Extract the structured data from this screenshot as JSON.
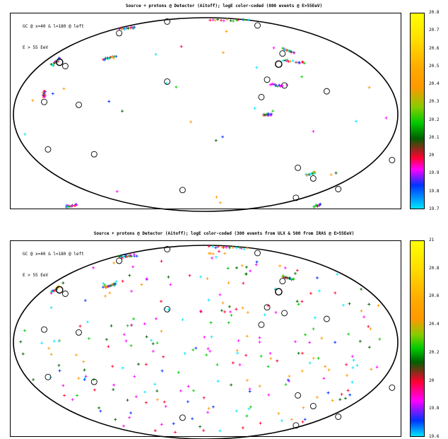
{
  "panels": [
    {
      "title": "Source + protons @ Detector (Aitoff); logE color-coded (800 events @ E>55EeV)",
      "legend": [
        "GC @ x=40 & l=180 @ left",
        "E > 55 EeV"
      ],
      "colorbar_ticks": [
        "19.7",
        "19.8",
        "19.9",
        "20",
        "20.1",
        "20.2",
        "20.3",
        "20.4",
        "20.5",
        "20.6",
        "20.7",
        "20.8"
      ],
      "colors": {
        "cyan": "#00e5ff",
        "blue": "#0033ff",
        "magenta": "#ff00ff",
        "red": "#ff0030",
        "dgreen": "#006000",
        "green": "#00cc00",
        "orange": "#ff9900",
        "yellow": "#ffff00"
      }
    },
    {
      "title": "Source + protons @ Detector (Aitoff); logE color-coded (300 events from ULX & 500 from IRAS @ E>55EeV)",
      "legend": [
        "GC @ x=40 & l=180 @ left",
        "E > 55 EeV"
      ],
      "colorbar_ticks": [
        "19.6",
        "19.8",
        "20",
        "20.2",
        "20.4",
        "20.6",
        "20.8",
        "21"
      ],
      "colors": {
        "cyan": "#00e5ff",
        "blue": "#0033ff",
        "magenta": "#ff00ff",
        "red": "#ff0030",
        "dgreen": "#006000",
        "green": "#00cc00",
        "orange": "#ff9900",
        "yellow": "#ffff00"
      }
    }
  ],
  "chart_data": [
    {
      "type": "scatter",
      "projection": "aitoff",
      "title": "Source + protons @ Detector (Aitoff); logE color-coded (800 events @ E>55EeV)",
      "color_scale": {
        "label": "logE",
        "min": 19.7,
        "max": 20.8
      },
      "sources_open_circles": [
        [
          -0.2,
          0.96
        ],
        [
          0.27,
          0.92
        ],
        [
          -0.45,
          0.84
        ],
        [
          0.4,
          0.63
        ],
        [
          0.38,
          0.52
        ],
        [
          -0.76,
          0.54
        ],
        [
          -0.73,
          0.5
        ],
        [
          -0.2,
          0.34
        ],
        [
          0.32,
          0.36
        ],
        [
          0.41,
          0.3
        ],
        [
          0.63,
          0.24
        ],
        [
          -0.84,
          0.13
        ],
        [
          -0.66,
          0.1
        ],
        [
          0.29,
          0.18
        ],
        [
          -0.58,
          -0.41
        ],
        [
          -0.12,
          -0.78
        ],
        [
          0.48,
          -0.55
        ],
        [
          0.56,
          -0.66
        ],
        [
          0.69,
          -0.77
        ],
        [
          0.97,
          -0.47
        ],
        [
          -0.82,
          -0.36
        ],
        [
          0.47,
          -0.86
        ]
      ],
      "event_tracks": [
        {
          "x": -0.8,
          "y": 0.51,
          "dx": 0.04,
          "dy": 0.07
        },
        {
          "x": -0.45,
          "y": 0.88,
          "dx": 0.08,
          "dy": 0.02
        },
        {
          "x": 0.02,
          "y": 0.98,
          "dx": 0.2,
          "dy": -0.01
        },
        {
          "x": 0.4,
          "y": 0.68,
          "dx": 0.06,
          "dy": -0.04
        },
        {
          "x": 0.4,
          "y": 0.56,
          "dx": 0.12,
          "dy": -0.03
        },
        {
          "x": -0.53,
          "y": 0.57,
          "dx": 0.06,
          "dy": 0.03
        },
        {
          "x": 0.34,
          "y": 0.31,
          "dx": 0.06,
          "dy": -0.02
        },
        {
          "x": 0.3,
          "y": 0.0,
          "dx": 0.04,
          "dy": 0.0
        },
        {
          "x": -0.84,
          "y": 0.18,
          "dx": 0.0,
          "dy": 0.06
        },
        {
          "x": -0.73,
          "y": -0.95,
          "dx": 0.06,
          "dy": 0.02
        },
        {
          "x": 0.52,
          "y": -0.62,
          "dx": 0.05,
          "dy": 0.02
        },
        {
          "x": 0.56,
          "y": -0.95,
          "dx": 0.04,
          "dy": 0.02
        }
      ]
    },
    {
      "type": "scatter",
      "projection": "aitoff",
      "title": "Source + protons @ Detector (Aitoff); logE color-coded (300 events from ULX & 500 from IRAS @ E>55EeV)",
      "color_scale": {
        "label": "logE",
        "min": 19.6,
        "max": 21
      },
      "sources_open_circles": [
        [
          -0.2,
          0.96
        ],
        [
          0.27,
          0.92
        ],
        [
          -0.45,
          0.84
        ],
        [
          0.4,
          0.63
        ],
        [
          0.38,
          0.52
        ],
        [
          -0.76,
          0.54
        ],
        [
          -0.73,
          0.5
        ],
        [
          -0.2,
          0.34
        ],
        [
          0.32,
          0.36
        ],
        [
          0.41,
          0.3
        ],
        [
          0.63,
          0.24
        ],
        [
          -0.84,
          0.13
        ],
        [
          -0.66,
          0.1
        ],
        [
          0.29,
          0.18
        ],
        [
          -0.58,
          -0.41
        ],
        [
          -0.12,
          -0.78
        ],
        [
          0.48,
          -0.55
        ],
        [
          0.56,
          -0.66
        ],
        [
          0.69,
          -0.77
        ],
        [
          0.97,
          -0.47
        ],
        [
          -0.82,
          -0.36
        ],
        [
          0.47,
          -0.86
        ]
      ],
      "event_tracks": [
        {
          "x": -0.8,
          "y": 0.51,
          "dx": 0.04,
          "dy": 0.07
        },
        {
          "x": -0.45,
          "y": 0.88,
          "dx": 0.08,
          "dy": 0.02
        },
        {
          "x": 0.02,
          "y": 0.98,
          "dx": 0.2,
          "dy": -0.01
        },
        {
          "x": 0.4,
          "y": 0.68,
          "dx": 0.06,
          "dy": -0.04
        },
        {
          "x": -0.53,
          "y": 0.57,
          "dx": 0.06,
          "dy": 0.03
        }
      ],
      "background_events": 400
    }
  ]
}
